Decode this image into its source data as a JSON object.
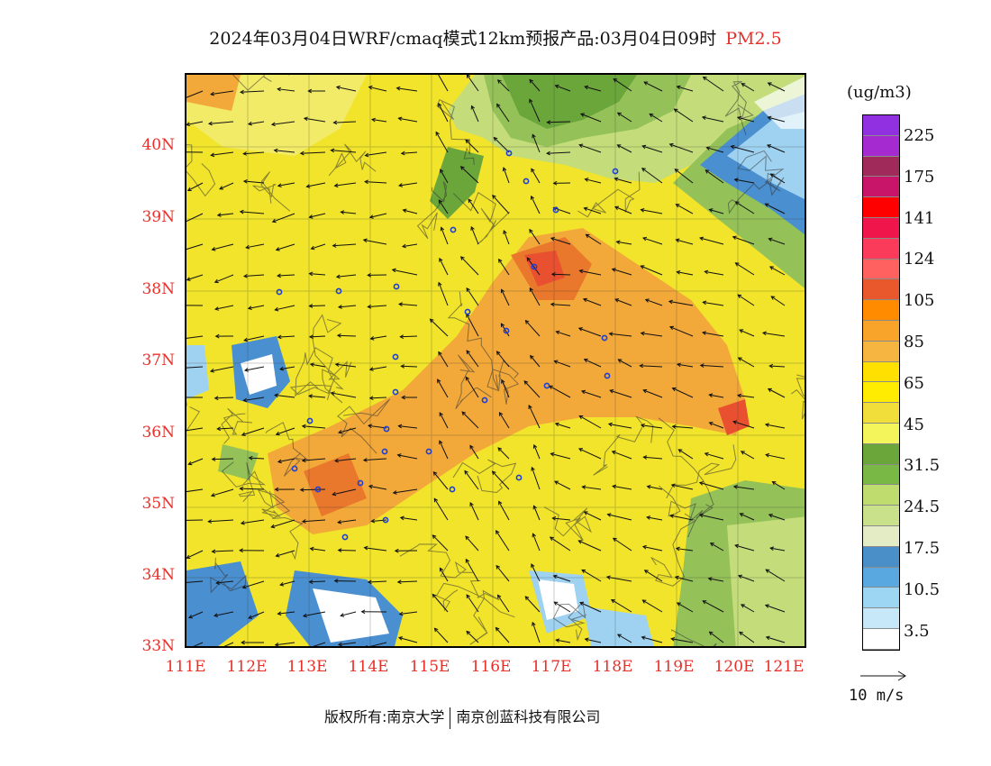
{
  "header": {
    "title": "2024年03月04日WRF/cmaq模式12km预报产品:03月04日09时",
    "pollutant": "PM2.5"
  },
  "map": {
    "lat_labels": [
      "40N",
      "39N",
      "38N",
      "37N",
      "36N",
      "35N",
      "34N",
      "33N"
    ],
    "lon_labels": [
      "111E",
      "112E",
      "113E",
      "114E",
      "115E",
      "116E",
      "117E",
      "118E",
      "119E",
      "120E",
      "121E"
    ],
    "colors": {
      "yellow_bg": "#f1e42a",
      "orange": "#f3a93a",
      "dark_orange": "#e9772c",
      "red_hotspot": "#e85030",
      "green_dark": "#6aa63a",
      "green_mid": "#94c258",
      "green_light": "#c4dd7a",
      "blue": "#4a8fd0",
      "blue_light": "#9fd2f0",
      "white": "#ffffff"
    }
  },
  "legend": {
    "units": "(ug/m3)",
    "labels": [
      "225",
      "175",
      "141",
      "124",
      "105",
      "85",
      "65",
      "45",
      "31.5",
      "24.5",
      "17.5",
      "10.5",
      "3.5"
    ],
    "colors": [
      "#9130e0",
      "#a52ad0",
      "#a02a5a",
      "#c8156a",
      "#ff0000",
      "#f0154a",
      "#fa3c5a",
      "#ff6060",
      "#e8582c",
      "#ff8c00",
      "#f8a32a",
      "#f6b440",
      "#ffe000",
      "#ffec00",
      "#f2de3a",
      "#f3f55a",
      "#6aa63a",
      "#7ab846",
      "#bedd6e",
      "#c9e18a",
      "#e4ecc6",
      "#4a8fc8",
      "#5aa8e0",
      "#9cd6f2",
      "#c6e8f8",
      "#ffffff"
    ]
  },
  "wind_reference": {
    "label": "10 m/s"
  },
  "footer": {
    "left": "版权所有:南京大学",
    "right": "南京创蓝科技有限公司"
  }
}
